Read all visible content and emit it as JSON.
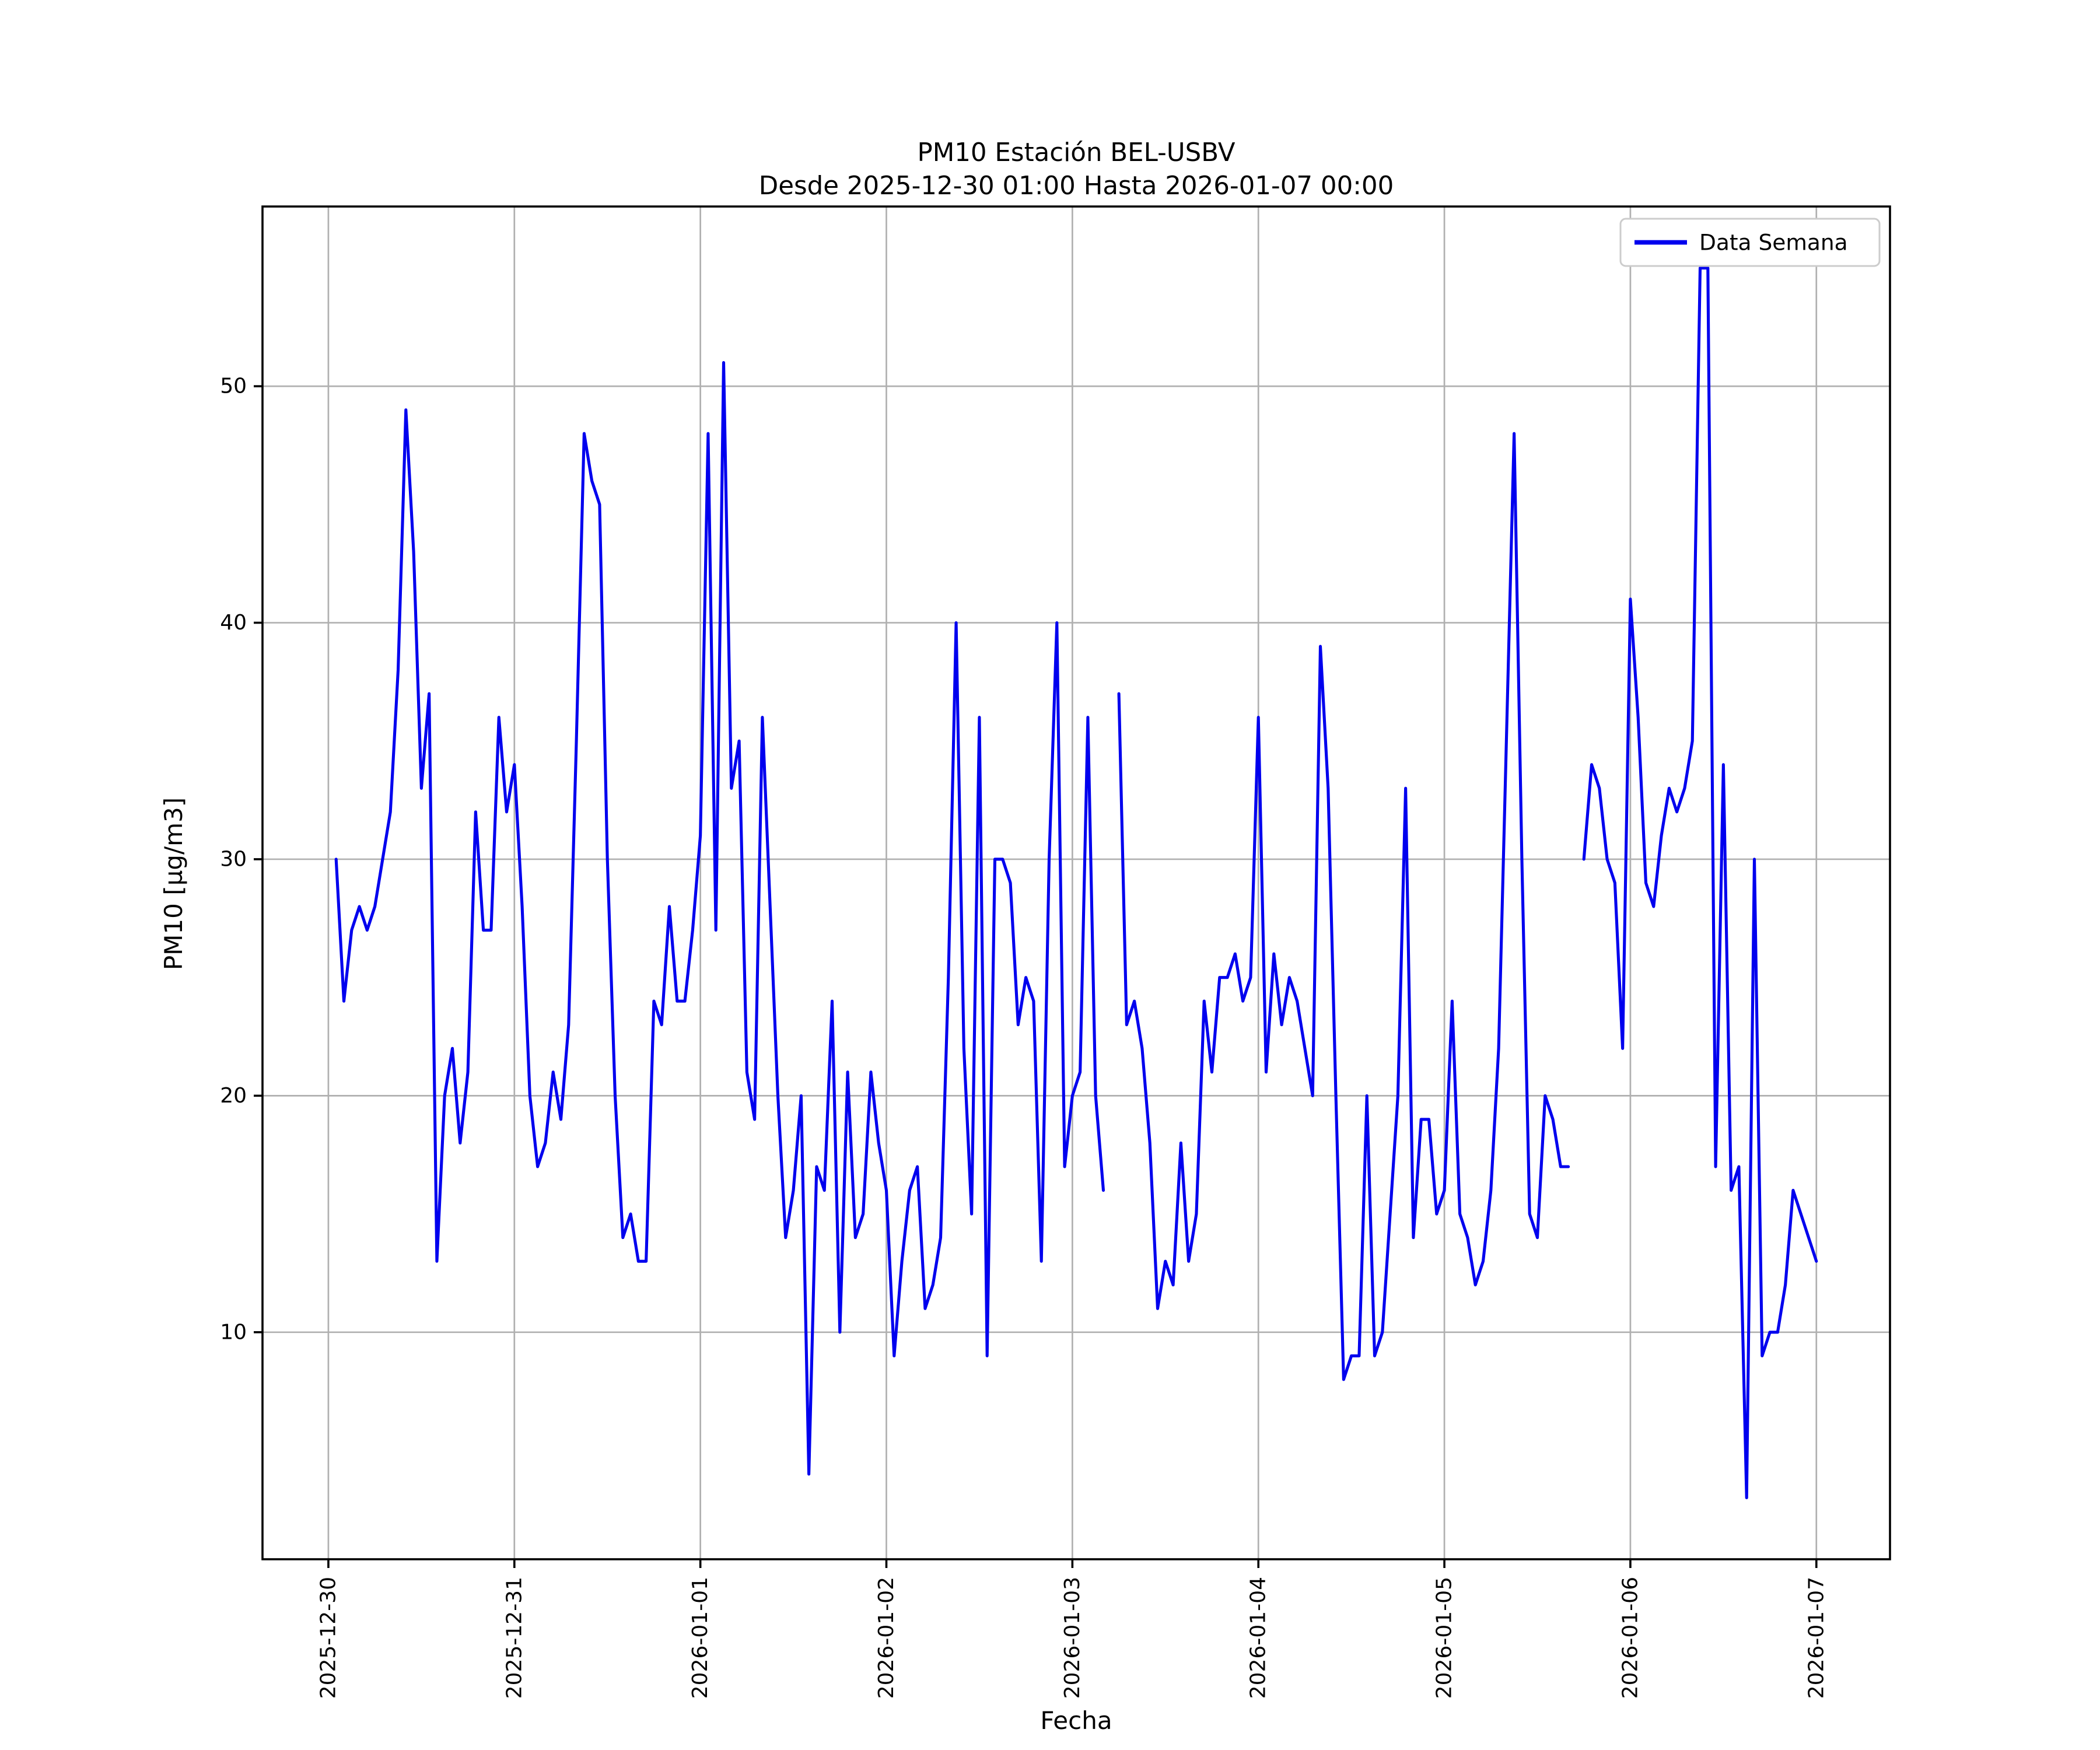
{
  "title": {
    "line1": "PM10 Estación BEL-USBV",
    "line2": "Desde 2025-12-30 01:00 Hasta 2026-01-07 00:00"
  },
  "axes": {
    "xlabel": "Fecha",
    "ylabel": "PM10 [µg/m3]"
  },
  "legend": {
    "label": "Data Semana",
    "position": "upper right"
  },
  "colors": {
    "series": "#0000ee",
    "grid": "#b0b0b0",
    "axis": "#000000",
    "background": "#ffffff"
  },
  "chart_data": {
    "type": "line",
    "title": "PM10 Estación BEL-USBV — Desde 2025-12-30 01:00 Hasta 2026-01-07 00:00",
    "xlabel": "Fecha",
    "ylabel": "PM10 [µg/m3]",
    "series_name": "Data Semana",
    "start": "2025-12-30 01:00",
    "interval_hours": 1,
    "x_start_hour": 1,
    "grid": true,
    "x_tick_labels": [
      "2025-12-30",
      "2025-12-31",
      "2026-01-01",
      "2026-01-02",
      "2026-01-03",
      "2026-01-04",
      "2026-01-05",
      "2026-01-06",
      "2026-01-07"
    ],
    "x_ticks_hours": [
      0,
      24,
      48,
      72,
      96,
      120,
      144,
      168,
      192
    ],
    "y_ticks": [
      10,
      20,
      30,
      40,
      50
    ],
    "ylim": [
      0.4,
      57.6
    ],
    "xlim_hours": [
      -8.5,
      201.5
    ],
    "values": [
      30,
      24,
      27,
      28,
      27,
      28,
      30,
      32,
      38,
      49,
      43,
      33,
      37,
      13,
      20,
      22,
      18,
      21,
      32,
      27,
      27,
      36,
      32,
      34,
      28,
      20,
      17,
      18,
      21,
      19,
      23,
      35,
      48,
      46,
      45,
      30,
      20,
      14,
      15,
      13,
      13,
      24,
      23,
      28,
      24,
      24,
      27,
      31,
      48,
      27,
      51,
      33,
      35,
      21,
      19,
      36,
      28,
      20,
      14,
      16,
      20,
      4,
      17,
      16,
      24,
      10,
      21,
      14,
      15,
      21,
      18,
      16,
      9,
      13,
      16,
      17,
      11,
      12,
      14,
      25,
      40,
      22,
      15,
      36,
      9,
      30,
      30,
      29,
      23,
      25,
      24,
      13,
      30,
      40,
      17,
      20,
      21,
      36,
      20,
      16,
      null,
      37,
      23,
      24,
      22,
      18,
      11,
      13,
      12,
      18,
      13,
      15,
      24,
      21,
      25,
      25,
      26,
      24,
      25,
      36,
      21,
      26,
      23,
      25,
      24,
      22,
      20,
      39,
      33,
      20,
      8,
      9,
      9,
      20,
      9,
      10,
      15,
      20,
      33,
      14,
      19,
      19,
      15,
      16,
      24,
      15,
      14,
      12,
      13,
      16,
      22,
      35,
      48,
      30,
      15,
      14,
      20,
      19,
      17,
      17,
      null,
      30,
      34,
      33,
      30,
      29,
      22,
      41,
      36,
      29,
      28,
      31,
      33,
      32,
      33,
      35,
      55,
      55,
      17,
      34,
      16,
      17,
      3,
      30,
      9,
      10,
      10,
      12,
      16,
      15,
      14,
      13
    ]
  }
}
